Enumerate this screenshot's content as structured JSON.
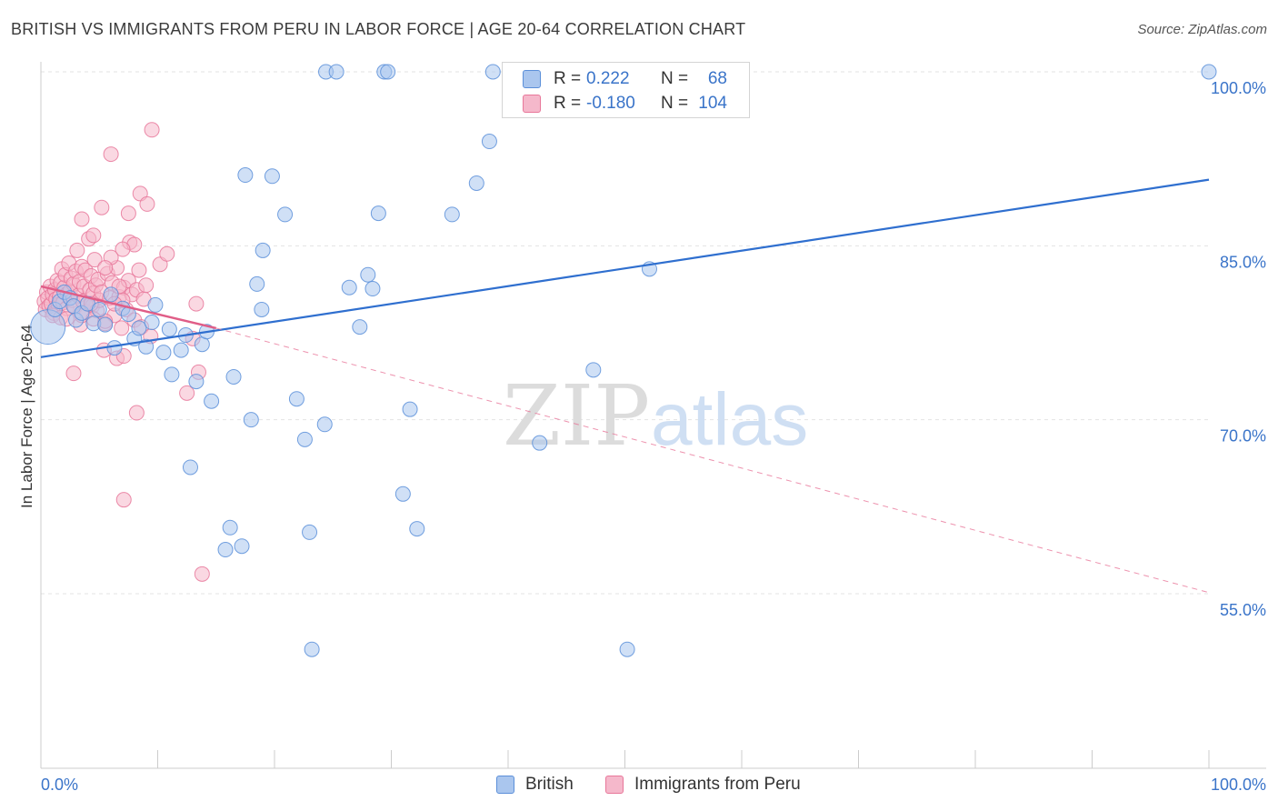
{
  "chart_data": {
    "type": "scatter",
    "title": "BRITISH VS IMMIGRANTS FROM PERU IN LABOR FORCE | AGE 20-64 CORRELATION CHART",
    "source": "Source: ZipAtlas.com",
    "ylabel": "In Labor Force | Age 20-64",
    "xlim": [
      0,
      100
    ],
    "ylim": [
      40,
      103
    ],
    "y_ticks": [
      55,
      70,
      85,
      100
    ],
    "y_tick_labels": [
      "55.0%",
      "70.0%",
      "85.0%",
      "100.0%"
    ],
    "x_tick_labels": [
      "0.0%",
      "100.0%"
    ],
    "watermark": {
      "zip": "ZIP",
      "atlas": "atlas"
    },
    "stats": [
      {
        "r_label": "R =",
        "r_value": "0.222",
        "n_label": "N =",
        "n_value": "68"
      },
      {
        "r_label": "R =",
        "r_value": "-0.180",
        "n_label": "N =",
        "n_value": "104"
      }
    ],
    "series": [
      {
        "name": "British",
        "color": "#5b8fd9",
        "fill": "#aac6ee",
        "trend": {
          "x": [
            0,
            100
          ],
          "y": [
            75.4,
            90.7
          ]
        },
        "points": [
          {
            "x": 0.6,
            "y": 78.0,
            "big": true
          },
          {
            "x": 1.2,
            "y": 79.5
          },
          {
            "x": 1.6,
            "y": 80.2
          },
          {
            "x": 2.0,
            "y": 81.0
          },
          {
            "x": 2.5,
            "y": 80.5
          },
          {
            "x": 2.8,
            "y": 79.8
          },
          {
            "x": 3.0,
            "y": 78.6
          },
          {
            "x": 3.5,
            "y": 79.2
          },
          {
            "x": 4.0,
            "y": 80.0
          },
          {
            "x": 4.5,
            "y": 78.3
          },
          {
            "x": 5.0,
            "y": 79.5
          },
          {
            "x": 5.5,
            "y": 78.2
          },
          {
            "x": 6.0,
            "y": 80.8
          },
          {
            "x": 6.3,
            "y": 76.2
          },
          {
            "x": 7.0,
            "y": 79.6
          },
          {
            "x": 7.5,
            "y": 79.1
          },
          {
            "x": 8.0,
            "y": 77.0
          },
          {
            "x": 8.4,
            "y": 77.9
          },
          {
            "x": 9.0,
            "y": 76.3
          },
          {
            "x": 9.5,
            "y": 78.4
          },
          {
            "x": 9.8,
            "y": 79.9
          },
          {
            "x": 10.5,
            "y": 75.8
          },
          {
            "x": 11.0,
            "y": 77.8
          },
          {
            "x": 11.2,
            "y": 73.9
          },
          {
            "x": 12.0,
            "y": 76.0
          },
          {
            "x": 12.4,
            "y": 77.3
          },
          {
            "x": 12.8,
            "y": 65.9
          },
          {
            "x": 13.3,
            "y": 73.3
          },
          {
            "x": 13.8,
            "y": 76.5
          },
          {
            "x": 14.2,
            "y": 77.6
          },
          {
            "x": 14.6,
            "y": 71.6
          },
          {
            "x": 15.8,
            "y": 58.8
          },
          {
            "x": 16.2,
            "y": 60.7
          },
          {
            "x": 16.5,
            "y": 73.7
          },
          {
            "x": 17.2,
            "y": 59.1
          },
          {
            "x": 17.5,
            "y": 91.1
          },
          {
            "x": 18.0,
            "y": 70.0
          },
          {
            "x": 18.5,
            "y": 81.7
          },
          {
            "x": 18.9,
            "y": 79.5
          },
          {
            "x": 19.0,
            "y": 84.6
          },
          {
            "x": 19.8,
            "y": 91.0
          },
          {
            "x": 20.9,
            "y": 87.7
          },
          {
            "x": 21.9,
            "y": 71.8
          },
          {
            "x": 22.6,
            "y": 68.3
          },
          {
            "x": 23.0,
            "y": 60.3
          },
          {
            "x": 24.3,
            "y": 69.6
          },
          {
            "x": 23.2,
            "y": 50.2
          },
          {
            "x": 24.4,
            "y": 100.0
          },
          {
            "x": 25.3,
            "y": 100.0
          },
          {
            "x": 26.4,
            "y": 81.4
          },
          {
            "x": 27.3,
            "y": 78.0
          },
          {
            "x": 28.0,
            "y": 82.5
          },
          {
            "x": 28.4,
            "y": 81.3
          },
          {
            "x": 28.9,
            "y": 87.8
          },
          {
            "x": 29.4,
            "y": 100.0
          },
          {
            "x": 29.7,
            "y": 100.0
          },
          {
            "x": 31.0,
            "y": 63.6
          },
          {
            "x": 31.6,
            "y": 70.9
          },
          {
            "x": 32.2,
            "y": 60.6
          },
          {
            "x": 35.2,
            "y": 87.7
          },
          {
            "x": 37.3,
            "y": 90.4
          },
          {
            "x": 38.4,
            "y": 94.0
          },
          {
            "x": 38.7,
            "y": 100.0
          },
          {
            "x": 42.7,
            "y": 68.0
          },
          {
            "x": 47.3,
            "y": 74.3
          },
          {
            "x": 50.2,
            "y": 50.2
          },
          {
            "x": 52.1,
            "y": 83.0
          },
          {
            "x": 100.0,
            "y": 100.0
          }
        ]
      },
      {
        "name": "Immigrants from Peru",
        "color": "#e8779a",
        "fill": "#f5b8cb",
        "trend": {
          "x": [
            0,
            15
          ],
          "y": [
            81.5,
            77.9
          ]
        },
        "trend_dashed": {
          "x": [
            15,
            100
          ],
          "y": [
            77.9,
            55.1
          ]
        },
        "points": [
          {
            "x": 0.3,
            "y": 80.2
          },
          {
            "x": 0.4,
            "y": 79.5
          },
          {
            "x": 0.5,
            "y": 81.0
          },
          {
            "x": 0.6,
            "y": 80.5
          },
          {
            "x": 0.7,
            "y": 79.8
          },
          {
            "x": 0.8,
            "y": 81.5
          },
          {
            "x": 0.9,
            "y": 80.0
          },
          {
            "x": 1.0,
            "y": 80.8
          },
          {
            "x": 1.1,
            "y": 79.2
          },
          {
            "x": 1.2,
            "y": 81.2
          },
          {
            "x": 1.3,
            "y": 80.4
          },
          {
            "x": 1.4,
            "y": 82.0
          },
          {
            "x": 1.5,
            "y": 79.9
          },
          {
            "x": 1.6,
            "y": 80.6
          },
          {
            "x": 1.7,
            "y": 81.8
          },
          {
            "x": 1.8,
            "y": 83.0
          },
          {
            "x": 1.9,
            "y": 80.1
          },
          {
            "x": 2.0,
            "y": 81.4
          },
          {
            "x": 2.1,
            "y": 82.5
          },
          {
            "x": 2.2,
            "y": 79.6
          },
          {
            "x": 2.3,
            "y": 80.9
          },
          {
            "x": 2.4,
            "y": 83.5
          },
          {
            "x": 2.5,
            "y": 81.1
          },
          {
            "x": 2.6,
            "y": 82.2
          },
          {
            "x": 2.7,
            "y": 80.3
          },
          {
            "x": 2.8,
            "y": 81.7
          },
          {
            "x": 2.9,
            "y": 79.7
          },
          {
            "x": 3.0,
            "y": 82.8
          },
          {
            "x": 3.1,
            "y": 84.6
          },
          {
            "x": 3.2,
            "y": 80.7
          },
          {
            "x": 3.3,
            "y": 81.9
          },
          {
            "x": 3.4,
            "y": 78.2
          },
          {
            "x": 3.5,
            "y": 83.2
          },
          {
            "x": 3.6,
            "y": 80.2
          },
          {
            "x": 3.7,
            "y": 81.5
          },
          {
            "x": 3.8,
            "y": 82.9
          },
          {
            "x": 3.9,
            "y": 79.3
          },
          {
            "x": 4.0,
            "y": 80.0
          },
          {
            "x": 4.1,
            "y": 85.6
          },
          {
            "x": 4.2,
            "y": 81.2
          },
          {
            "x": 4.3,
            "y": 82.4
          },
          {
            "x": 4.4,
            "y": 79.8
          },
          {
            "x": 4.5,
            "y": 80.9
          },
          {
            "x": 4.6,
            "y": 83.8
          },
          {
            "x": 4.7,
            "y": 81.6
          },
          {
            "x": 4.8,
            "y": 79.4
          },
          {
            "x": 4.9,
            "y": 82.1
          },
          {
            "x": 5.0,
            "y": 80.3
          },
          {
            "x": 5.2,
            "y": 81.0
          },
          {
            "x": 5.4,
            "y": 76.0
          },
          {
            "x": 5.5,
            "y": 78.3
          },
          {
            "x": 5.7,
            "y": 82.6
          },
          {
            "x": 5.9,
            "y": 80.5
          },
          {
            "x": 6.1,
            "y": 81.8
          },
          {
            "x": 6.3,
            "y": 79.0
          },
          {
            "x": 6.5,
            "y": 83.1
          },
          {
            "x": 6.7,
            "y": 80.6
          },
          {
            "x": 6.9,
            "y": 77.9
          },
          {
            "x": 7.1,
            "y": 81.4
          },
          {
            "x": 7.3,
            "y": 79.5
          },
          {
            "x": 7.5,
            "y": 82.0
          },
          {
            "x": 7.6,
            "y": 85.3
          },
          {
            "x": 7.8,
            "y": 80.8
          },
          {
            "x": 8.0,
            "y": 78.6
          },
          {
            "x": 8.2,
            "y": 81.2
          },
          {
            "x": 8.4,
            "y": 82.9
          },
          {
            "x": 8.5,
            "y": 89.5
          },
          {
            "x": 8.6,
            "y": 78.0
          },
          {
            "x": 8.8,
            "y": 80.4
          },
          {
            "x": 9.0,
            "y": 81.6
          },
          {
            "x": 3.5,
            "y": 87.3
          },
          {
            "x": 4.5,
            "y": 85.9
          },
          {
            "x": 5.2,
            "y": 88.3
          },
          {
            "x": 6.0,
            "y": 92.9
          },
          {
            "x": 7.5,
            "y": 87.8
          },
          {
            "x": 9.1,
            "y": 88.6
          },
          {
            "x": 9.5,
            "y": 95.0
          },
          {
            "x": 10.2,
            "y": 83.4
          },
          {
            "x": 10.8,
            "y": 84.3
          },
          {
            "x": 8.0,
            "y": 85.1
          },
          {
            "x": 7.0,
            "y": 84.7
          },
          {
            "x": 6.0,
            "y": 84.0
          },
          {
            "x": 5.5,
            "y": 83.1
          },
          {
            "x": 2.8,
            "y": 74.0
          },
          {
            "x": 6.5,
            "y": 75.3
          },
          {
            "x": 7.1,
            "y": 75.5
          },
          {
            "x": 8.2,
            "y": 70.6
          },
          {
            "x": 9.4,
            "y": 77.2
          },
          {
            "x": 7.1,
            "y": 63.1
          },
          {
            "x": 12.5,
            "y": 72.3
          },
          {
            "x": 13.0,
            "y": 77.0
          },
          {
            "x": 13.5,
            "y": 74.1
          },
          {
            "x": 13.3,
            "y": 80.0
          },
          {
            "x": 13.8,
            "y": 56.7
          },
          {
            "x": 7.0,
            "y": 80.3
          },
          {
            "x": 4.3,
            "y": 80.0
          },
          {
            "x": 1.0,
            "y": 79.0
          },
          {
            "x": 1.7,
            "y": 78.8
          },
          {
            "x": 2.2,
            "y": 78.7
          },
          {
            "x": 3.5,
            "y": 79.0
          },
          {
            "x": 4.5,
            "y": 78.7
          },
          {
            "x": 5.5,
            "y": 78.5
          },
          {
            "x": 6.3,
            "y": 80.0
          },
          {
            "x": 6.7,
            "y": 81.5
          }
        ]
      }
    ]
  }
}
